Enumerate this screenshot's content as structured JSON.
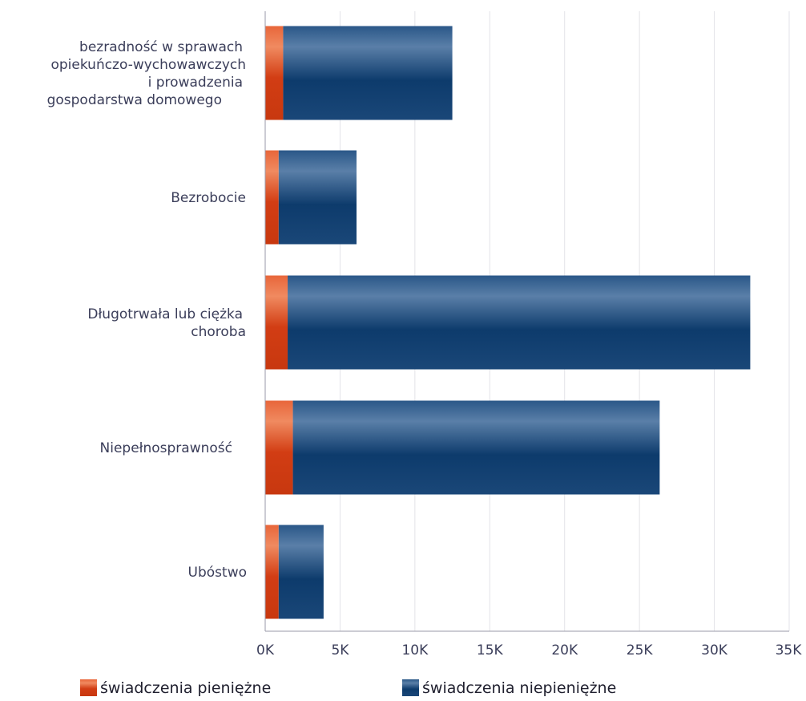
{
  "chart_data": {
    "type": "bar",
    "orientation": "horizontal",
    "stacked": true,
    "categories": [
      [
        "bezradność w sprawach",
        "opiekuńczo-wychowawczych",
        "i prowadzenia",
        "gospodarstwa domowego"
      ],
      [
        "Bezrobocie"
      ],
      [
        "Długotrwała lub ciężka",
        "choroba"
      ],
      [
        "Niepełnosprawność"
      ],
      [
        "Ubóstwo"
      ]
    ],
    "series": [
      {
        "name": "świadczenia pieniężne",
        "color": "#d9441c",
        "values": [
          1200,
          900,
          1500,
          1850,
          900
        ]
      },
      {
        "name": "świadczenia niepieniężne",
        "color": "#1b4a7c",
        "values": [
          11300,
          5200,
          30900,
          24500,
          3000
        ]
      }
    ],
    "xlim": [
      0,
      35000
    ],
    "xticks": [
      0,
      5000,
      10000,
      15000,
      20000,
      25000,
      30000,
      35000
    ],
    "xtick_labels": [
      "0K",
      "5K",
      "10K",
      "15K",
      "20K",
      "25K",
      "30K",
      "35K"
    ],
    "grid": true,
    "legend_position": "bottom"
  }
}
